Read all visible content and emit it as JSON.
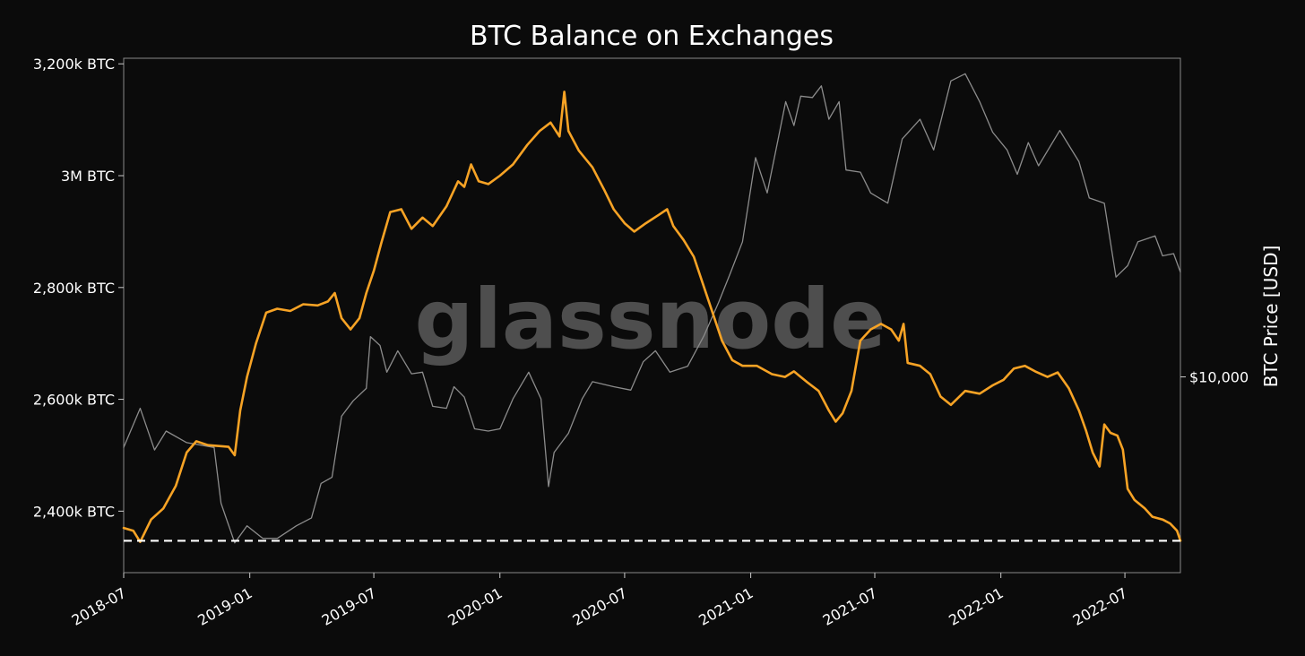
{
  "chart_data": {
    "type": "line",
    "title": "BTC Balance on Exchanges",
    "watermark": "glassnode",
    "xlabel": "",
    "ylabel_left": "",
    "ylabel_right": "BTC Price [USD]",
    "x_range": [
      "2018-07-01",
      "2022-09-20"
    ],
    "ylim_left": [
      2290,
      3210
    ],
    "ylim_left_unit": "k BTC",
    "ylim_right": [
      2900,
      75000
    ],
    "right_axis_scale": "log",
    "grid": false,
    "legend": "none",
    "background_color": "#0b0b0b",
    "xticks": [
      {
        "date": "2018-07-01",
        "label": "2018-07"
      },
      {
        "date": "2019-01-01",
        "label": "2019-01"
      },
      {
        "date": "2019-07-01",
        "label": "2019-07"
      },
      {
        "date": "2020-01-01",
        "label": "2020-01"
      },
      {
        "date": "2020-07-01",
        "label": "2020-07"
      },
      {
        "date": "2021-01-01",
        "label": "2021-01"
      },
      {
        "date": "2021-07-01",
        "label": "2021-07"
      },
      {
        "date": "2022-01-01",
        "label": "2022-01"
      },
      {
        "date": "2022-07-01",
        "label": "2022-07"
      }
    ],
    "yticks_left": [
      {
        "value": 2400,
        "label": "2,400k BTC"
      },
      {
        "value": 2600,
        "label": "2,600k BTC"
      },
      {
        "value": 2800,
        "label": "2,800k BTC"
      },
      {
        "value": 3000,
        "label": "3M BTC"
      },
      {
        "value": 3200,
        "label": "3,200k BTC"
      }
    ],
    "yticks_right": [
      {
        "value": 10000,
        "label": "$10,000"
      }
    ],
    "reference_line": {
      "axis": "left",
      "value": 2347,
      "style": "dashed",
      "color": "#ffffff"
    },
    "series": [
      {
        "key": "exchange_balance",
        "axis": "left",
        "color": "#f7a325",
        "points": [
          [
            "2018-07-01",
            2370
          ],
          [
            "2018-07-15",
            2365
          ],
          [
            "2018-07-25",
            2345
          ],
          [
            "2018-08-10",
            2385
          ],
          [
            "2018-08-28",
            2405
          ],
          [
            "2018-09-15",
            2445
          ],
          [
            "2018-10-01",
            2505
          ],
          [
            "2018-10-15",
            2525
          ],
          [
            "2018-11-01",
            2518
          ],
          [
            "2018-12-01",
            2515
          ],
          [
            "2018-12-10",
            2500
          ],
          [
            "2018-12-18",
            2580
          ],
          [
            "2018-12-28",
            2640
          ],
          [
            "2019-01-10",
            2700
          ],
          [
            "2019-01-25",
            2755
          ],
          [
            "2019-02-10",
            2762
          ],
          [
            "2019-03-01",
            2758
          ],
          [
            "2019-03-20",
            2770
          ],
          [
            "2019-04-10",
            2768
          ],
          [
            "2019-04-25",
            2775
          ],
          [
            "2019-05-05",
            2790
          ],
          [
            "2019-05-15",
            2745
          ],
          [
            "2019-05-28",
            2725
          ],
          [
            "2019-06-10",
            2745
          ],
          [
            "2019-06-20",
            2790
          ],
          [
            "2019-07-01",
            2830
          ],
          [
            "2019-07-12",
            2880
          ],
          [
            "2019-07-25",
            2935
          ],
          [
            "2019-08-10",
            2940
          ],
          [
            "2019-08-25",
            2905
          ],
          [
            "2019-09-10",
            2925
          ],
          [
            "2019-09-25",
            2910
          ],
          [
            "2019-10-15",
            2945
          ],
          [
            "2019-11-01",
            2990
          ],
          [
            "2019-11-10",
            2980
          ],
          [
            "2019-11-20",
            3020
          ],
          [
            "2019-12-01",
            2990
          ],
          [
            "2019-12-15",
            2985
          ],
          [
            "2020-01-01",
            3000
          ],
          [
            "2020-01-20",
            3020
          ],
          [
            "2020-02-10",
            3055
          ],
          [
            "2020-02-28",
            3080
          ],
          [
            "2020-03-15",
            3095
          ],
          [
            "2020-03-28",
            3070
          ],
          [
            "2020-04-04",
            3150
          ],
          [
            "2020-04-10",
            3080
          ],
          [
            "2020-04-25",
            3045
          ],
          [
            "2020-05-15",
            3015
          ],
          [
            "2020-06-01",
            2975
          ],
          [
            "2020-06-15",
            2940
          ],
          [
            "2020-07-01",
            2915
          ],
          [
            "2020-07-15",
            2900
          ],
          [
            "2020-08-01",
            2915
          ],
          [
            "2020-08-20",
            2930
          ],
          [
            "2020-09-01",
            2940
          ],
          [
            "2020-09-10",
            2910
          ],
          [
            "2020-09-25",
            2885
          ],
          [
            "2020-10-10",
            2855
          ],
          [
            "2020-10-25",
            2800
          ],
          [
            "2020-11-05",
            2760
          ],
          [
            "2020-11-20",
            2705
          ],
          [
            "2020-12-05",
            2670
          ],
          [
            "2020-12-20",
            2660
          ],
          [
            "2021-01-10",
            2660
          ],
          [
            "2021-02-01",
            2645
          ],
          [
            "2021-02-20",
            2640
          ],
          [
            "2021-03-05",
            2650
          ],
          [
            "2021-03-25",
            2630
          ],
          [
            "2021-04-10",
            2615
          ],
          [
            "2021-04-25",
            2580
          ],
          [
            "2021-05-05",
            2560
          ],
          [
            "2021-05-15",
            2575
          ],
          [
            "2021-05-28",
            2615
          ],
          [
            "2021-06-10",
            2705
          ],
          [
            "2021-06-25",
            2725
          ],
          [
            "2021-07-10",
            2735
          ],
          [
            "2021-07-25",
            2725
          ],
          [
            "2021-08-05",
            2705
          ],
          [
            "2021-08-12",
            2735
          ],
          [
            "2021-08-18",
            2665
          ],
          [
            "2021-09-05",
            2660
          ],
          [
            "2021-09-20",
            2645
          ],
          [
            "2021-10-05",
            2605
          ],
          [
            "2021-10-20",
            2590
          ],
          [
            "2021-11-10",
            2615
          ],
          [
            "2021-12-01",
            2610
          ],
          [
            "2021-12-20",
            2625
          ],
          [
            "2022-01-05",
            2635
          ],
          [
            "2022-01-20",
            2655
          ],
          [
            "2022-02-05",
            2660
          ],
          [
            "2022-02-20",
            2650
          ],
          [
            "2022-03-10",
            2640
          ],
          [
            "2022-03-25",
            2648
          ],
          [
            "2022-04-10",
            2620
          ],
          [
            "2022-04-25",
            2580
          ],
          [
            "2022-05-05",
            2545
          ],
          [
            "2022-05-15",
            2505
          ],
          [
            "2022-05-25",
            2480
          ],
          [
            "2022-06-01",
            2555
          ],
          [
            "2022-06-10",
            2540
          ],
          [
            "2022-06-20",
            2535
          ],
          [
            "2022-06-28",
            2510
          ],
          [
            "2022-07-05",
            2440
          ],
          [
            "2022-07-15",
            2420
          ],
          [
            "2022-07-30",
            2405
          ],
          [
            "2022-08-10",
            2390
          ],
          [
            "2022-08-25",
            2385
          ],
          [
            "2022-09-05",
            2378
          ],
          [
            "2022-09-15",
            2365
          ],
          [
            "2022-09-20",
            2347
          ]
        ]
      },
      {
        "key": "btc_price",
        "axis": "right",
        "color": "#8c8c8c",
        "points": [
          [
            "2018-07-01",
            6400
          ],
          [
            "2018-07-25",
            8200
          ],
          [
            "2018-08-15",
            6300
          ],
          [
            "2018-09-01",
            7100
          ],
          [
            "2018-10-01",
            6600
          ],
          [
            "2018-11-10",
            6400
          ],
          [
            "2018-11-20",
            4500
          ],
          [
            "2018-12-10",
            3500
          ],
          [
            "2018-12-28",
            3900
          ],
          [
            "2019-01-20",
            3600
          ],
          [
            "2019-02-10",
            3600
          ],
          [
            "2019-03-10",
            3900
          ],
          [
            "2019-04-01",
            4100
          ],
          [
            "2019-04-15",
            5100
          ],
          [
            "2019-05-01",
            5300
          ],
          [
            "2019-05-15",
            7800
          ],
          [
            "2019-06-01",
            8600
          ],
          [
            "2019-06-20",
            9300
          ],
          [
            "2019-06-26",
            12900
          ],
          [
            "2019-07-10",
            12200
          ],
          [
            "2019-07-20",
            10300
          ],
          [
            "2019-08-05",
            11800
          ],
          [
            "2019-08-25",
            10200
          ],
          [
            "2019-09-10",
            10300
          ],
          [
            "2019-09-25",
            8300
          ],
          [
            "2019-10-15",
            8200
          ],
          [
            "2019-10-26",
            9400
          ],
          [
            "2019-11-10",
            8800
          ],
          [
            "2019-11-25",
            7200
          ],
          [
            "2019-12-15",
            7100
          ],
          [
            "2020-01-01",
            7200
          ],
          [
            "2020-01-20",
            8700
          ],
          [
            "2020-02-12",
            10300
          ],
          [
            "2020-03-01",
            8700
          ],
          [
            "2020-03-12",
            5000
          ],
          [
            "2020-03-20",
            6200
          ],
          [
            "2020-04-10",
            7000
          ],
          [
            "2020-04-30",
            8700
          ],
          [
            "2020-05-15",
            9700
          ],
          [
            "2020-06-15",
            9400
          ],
          [
            "2020-07-10",
            9200
          ],
          [
            "2020-07-28",
            11000
          ],
          [
            "2020-08-15",
            11800
          ],
          [
            "2020-09-05",
            10300
          ],
          [
            "2020-10-01",
            10700
          ],
          [
            "2020-10-25",
            13000
          ],
          [
            "2020-11-15",
            16000
          ],
          [
            "2020-12-01",
            19000
          ],
          [
            "2020-12-20",
            23500
          ],
          [
            "2021-01-08",
            40000
          ],
          [
            "2021-01-25",
            32000
          ],
          [
            "2021-02-10",
            45000
          ],
          [
            "2021-02-21",
            57000
          ],
          [
            "2021-03-05",
            49000
          ],
          [
            "2021-03-15",
            59000
          ],
          [
            "2021-04-01",
            58500
          ],
          [
            "2021-04-14",
            63000
          ],
          [
            "2021-04-25",
            51000
          ],
          [
            "2021-05-10",
            57000
          ],
          [
            "2021-05-20",
            37000
          ],
          [
            "2021-06-10",
            36500
          ],
          [
            "2021-06-25",
            32000
          ],
          [
            "2021-07-20",
            30000
          ],
          [
            "2021-08-10",
            45000
          ],
          [
            "2021-09-05",
            51000
          ],
          [
            "2021-09-25",
            42000
          ],
          [
            "2021-10-20",
            65000
          ],
          [
            "2021-11-10",
            68000
          ],
          [
            "2021-12-01",
            57000
          ],
          [
            "2021-12-20",
            47000
          ],
          [
            "2022-01-10",
            42000
          ],
          [
            "2022-01-25",
            36000
          ],
          [
            "2022-02-10",
            44000
          ],
          [
            "2022-02-25",
            38000
          ],
          [
            "2022-03-28",
            47500
          ],
          [
            "2022-04-25",
            39000
          ],
          [
            "2022-05-10",
            31000
          ],
          [
            "2022-06-01",
            30000
          ],
          [
            "2022-06-18",
            18800
          ],
          [
            "2022-07-05",
            20200
          ],
          [
            "2022-07-20",
            23500
          ],
          [
            "2022-08-14",
            24400
          ],
          [
            "2022-08-25",
            21500
          ],
          [
            "2022-09-10",
            21800
          ],
          [
            "2022-09-20",
            19400
          ]
        ]
      }
    ]
  }
}
